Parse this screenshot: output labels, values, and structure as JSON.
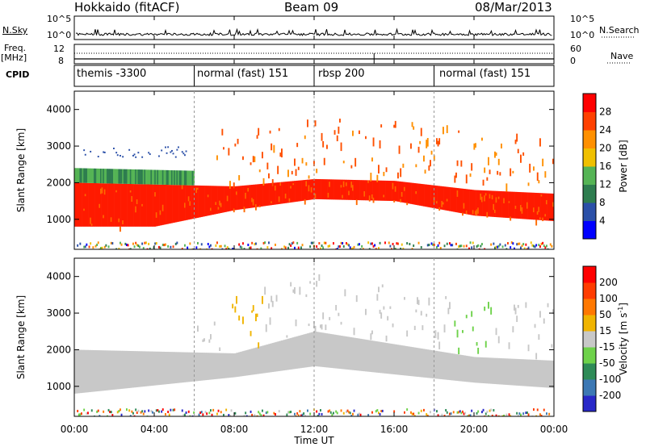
{
  "header": {
    "station": "Hokkaido (fitACF)",
    "beam": "Beam 09",
    "date": "08/Mar/2013"
  },
  "left_labels": {
    "nsky": "N.Sky",
    "freq": "Freq.",
    "mhz": "[MHz]",
    "cpid": "CPID"
  },
  "right_labels": {
    "nsearch": "N.Search",
    "nave": "Nave"
  },
  "noise_panel": {
    "left_ticks": [
      "10^5",
      "10^0"
    ],
    "right_ticks": [
      "10^5",
      "10^0"
    ]
  },
  "freq_panel": {
    "left_ticks": [
      "12",
      "8"
    ],
    "right_ticks": [
      "60",
      "0"
    ]
  },
  "cpid_modes": [
    {
      "start_hour": 0,
      "label": "themis -3300"
    },
    {
      "start_hour": 6,
      "label": "normal (fast) 151"
    },
    {
      "start_hour": 12,
      "label": "rbsp 200"
    },
    {
      "start_hour": 18,
      "label": "normal (fast) 151"
    }
  ],
  "colorbars": {
    "power": {
      "label": "Power [dB]",
      "ticks": [
        "4",
        "8",
        "12",
        "16",
        "20",
        "24",
        "28"
      ],
      "colors": [
        "#0000ff",
        "#2b50a8",
        "#2e7d4f",
        "#55b455",
        "#f0c000",
        "#ff9000",
        "#ff4000",
        "#ff0000"
      ]
    },
    "velocity": {
      "label": "Velocity [m s",
      "label_sup": "-1",
      "label_end": "]",
      "ticks": [
        "200",
        "100",
        "50",
        "15",
        "-15",
        "-50",
        "-100",
        "-200"
      ],
      "colors": [
        "#2828c8",
        "#3c78b4",
        "#2e8b57",
        "#6ed24a",
        "#c8c8c8",
        "#f0b400",
        "#ff7800",
        "#ff3c00",
        "#ff0000"
      ]
    }
  },
  "chart_data": {
    "type": "heatmap",
    "title": "Hokkaido (fitACF)  Beam 09  08/Mar/2013",
    "xlabel": "Time UT",
    "x_ticks": [
      "00:00",
      "04:00",
      "08:00",
      "12:00",
      "16:00",
      "20:00",
      "00:00"
    ],
    "xlim": [
      0,
      24
    ],
    "y_ticks": [
      "1000",
      "2000",
      "3000",
      "4000"
    ],
    "ylim": [
      180,
      4500
    ],
    "panels": [
      {
        "name": "power",
        "ylabel": "Slant Range [km]",
        "color_scale": "Power [dB]",
        "approx_scatter_band": [
          {
            "hour": 0,
            "lower_km": 800,
            "upper_km": 2000,
            "value_db": 26
          },
          {
            "hour": 4,
            "lower_km": 800,
            "upper_km": 1950,
            "value_db": 26
          },
          {
            "hour": 8,
            "lower_km": 1250,
            "upper_km": 1900,
            "value_db": 26
          },
          {
            "hour": 12,
            "lower_km": 1550,
            "upper_km": 2100,
            "value_db": 26
          },
          {
            "hour": 16,
            "lower_km": 1500,
            "upper_km": 2050,
            "value_db": 26
          },
          {
            "hour": 20,
            "lower_km": 1100,
            "upper_km": 1800,
            "value_db": 26
          },
          {
            "hour": 24,
            "lower_km": 950,
            "upper_km": 1700,
            "value_db": 26
          }
        ]
      },
      {
        "name": "velocity",
        "ylabel": "Slant Range [km]",
        "color_scale": "Velocity [m s-1]",
        "approx_scatter_band": [
          {
            "hour": 0,
            "lower_km": 800,
            "upper_km": 2000,
            "value_ms": 0
          },
          {
            "hour": 8,
            "lower_km": 1250,
            "upper_km": 1900,
            "value_ms": 0
          },
          {
            "hour": 12,
            "lower_km": 1550,
            "upper_km": 2500,
            "value_ms": 0
          },
          {
            "hour": 20,
            "lower_km": 1100,
            "upper_km": 1800,
            "value_ms": 0
          },
          {
            "hour": 24,
            "lower_km": 950,
            "upper_km": 1700,
            "value_ms": 0
          }
        ]
      }
    ]
  }
}
